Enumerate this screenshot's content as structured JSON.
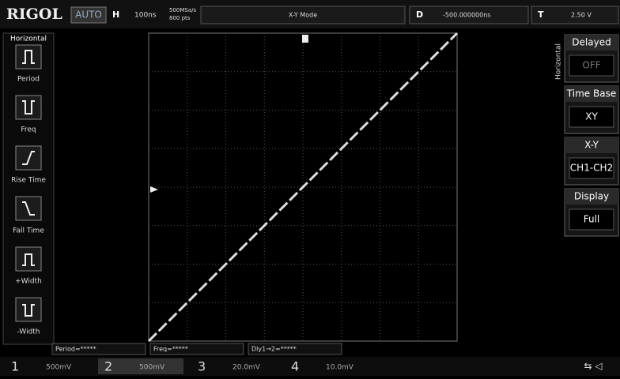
{
  "header": {
    "brand": "RIGOL",
    "mode": "AUTO",
    "timebase_label": "H",
    "timebase": "100ns",
    "sample_rate": "500MSa/s",
    "points": "800 pts",
    "display_mode": "X-Y Mode",
    "delay_label": "D",
    "delay": "-500.000000ns",
    "trigger_label": "T",
    "trigger_level": "2.50 V"
  },
  "left_menu": {
    "title": "Horizontal",
    "items": [
      "Period",
      "Freq",
      "Rise Time",
      "Fall Time",
      "+Width",
      "-Width"
    ]
  },
  "right_menu": {
    "title": "Horizontal",
    "items": [
      {
        "label": "Delayed",
        "value": "OFF"
      },
      {
        "label": "Time Base",
        "value": "XY"
      },
      {
        "label": "X-Y",
        "value": "CH1-CH2"
      },
      {
        "label": "Display",
        "value": "Full"
      }
    ]
  },
  "measurements": [
    "Period=*****",
    "Freq=*****",
    "Dly1→2=*****"
  ],
  "channels": [
    {
      "number": "1",
      "scale": "500mV"
    },
    {
      "number": "2",
      "scale": "500mV"
    },
    {
      "number": "3",
      "scale": "20.0mV"
    },
    {
      "number": "4",
      "scale": "10.0mV"
    }
  ]
}
